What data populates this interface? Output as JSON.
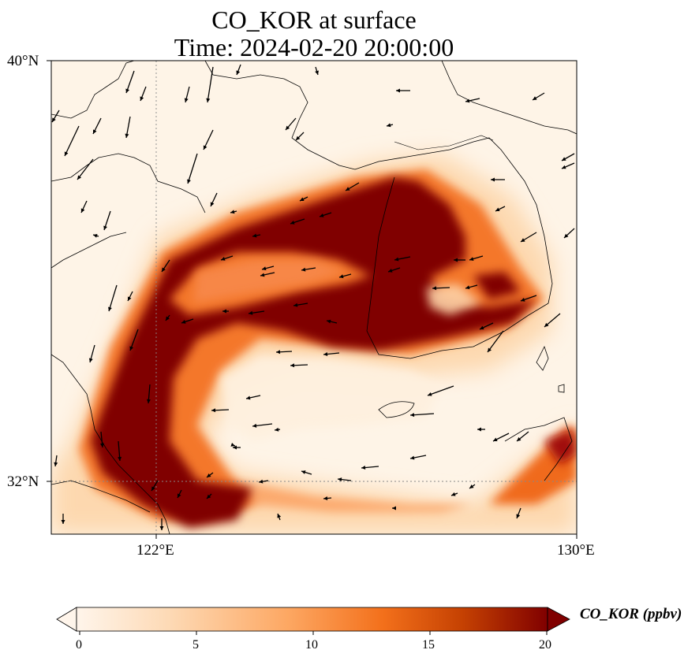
{
  "title_line1": "CO_KOR at surface",
  "title_line2": "Time: 2024-02-20 20:00:00",
  "map": {
    "lon_ticks": [
      "122°E",
      "130°E"
    ],
    "lat_ticks": [
      "40°N",
      "32°N"
    ],
    "gridlines": "dotted"
  },
  "colorbar": {
    "label": "CO_KOR (ppbv)",
    "ticks": [
      "0",
      "5",
      "10",
      "15",
      "20"
    ],
    "min": 0,
    "max": 20,
    "extend": "both",
    "colors": [
      "#fff5eb",
      "#fdd9b4",
      "#fda762",
      "#f3701b",
      "#c54102",
      "#800000"
    ]
  },
  "chart_data": {
    "type": "heatmap",
    "title": "CO_KOR at surface\nTime: 2024-02-20 20:00:00",
    "variable": "CO_KOR",
    "units": "ppbv",
    "lon_range": [
      120,
      130
    ],
    "lat_range": [
      31,
      40
    ],
    "value_range": [
      0,
      20
    ],
    "colormap": "OrRd",
    "features": [
      "high-concentration band from Korean peninsula west coast across Yellow Sea to eastern China coast",
      "high-concentration band along southern Korea coast",
      "wind vectors"
    ]
  }
}
